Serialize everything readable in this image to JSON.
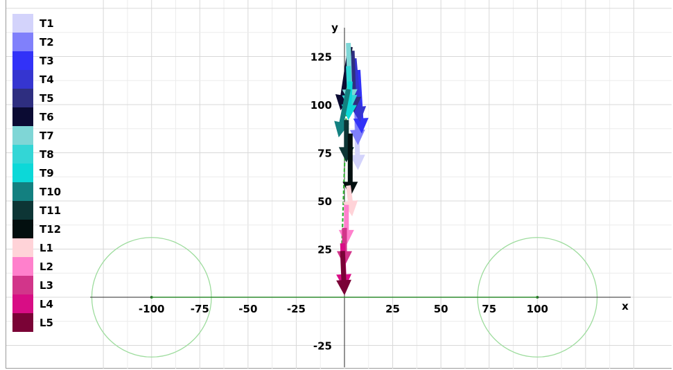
{
  "chart_data": {
    "type": "vector_field",
    "xlabel": "x",
    "ylabel": "y",
    "xlim": [
      -132,
      149
    ],
    "ylim": [
      -37,
      138
    ],
    "x_ticks": [
      -100,
      -75,
      -50,
      -25,
      25,
      50,
      75,
      100
    ],
    "y_ticks": [
      125,
      100,
      75,
      50,
      25,
      -25
    ],
    "grid": true,
    "legend_position": "left",
    "legend": [
      {
        "name": "T1",
        "color": "#d3d3fb"
      },
      {
        "name": "T2",
        "color": "#8080fb"
      },
      {
        "name": "T3",
        "color": "#3232f8"
      },
      {
        "name": "T4",
        "color": "#3535d0"
      },
      {
        "name": "T5",
        "color": "#2e2e80"
      },
      {
        "name": "T6",
        "color": "#0b0b33"
      },
      {
        "name": "T7",
        "color": "#7fd6d6"
      },
      {
        "name": "T8",
        "color": "#33d6d6"
      },
      {
        "name": "T9",
        "color": "#0cd8d8"
      },
      {
        "name": "T10",
        "color": "#138080"
      },
      {
        "name": "T11",
        "color": "#0d3535"
      },
      {
        "name": "T12",
        "color": "#030f0f"
      },
      {
        "name": "L1",
        "color": "#ffd3d8"
      },
      {
        "name": "L2",
        "color": "#ff80cc"
      },
      {
        "name": "L3",
        "color": "#d2358a"
      },
      {
        "name": "L4",
        "color": "#d80d85"
      },
      {
        "name": "L5",
        "color": "#7a0336"
      }
    ],
    "circles": [
      {
        "center": [
          -100,
          0
        ],
        "radius": 31
      },
      {
        "center": [
          100,
          0
        ],
        "radius": 31
      }
    ],
    "arrows": [
      {
        "series": "T1",
        "from": [
          6,
          100
        ],
        "to": [
          7,
          66
        ]
      },
      {
        "series": "T2",
        "from": [
          6,
          110
        ],
        "to": [
          7,
          79
        ]
      },
      {
        "series": "T3",
        "from": [
          7,
          118
        ],
        "to": [
          9,
          85
        ]
      },
      {
        "series": "T4",
        "from": [
          5,
          124
        ],
        "to": [
          8,
          91
        ]
      },
      {
        "series": "T5",
        "from": [
          4,
          128
        ],
        "to": [
          5,
          96
        ]
      },
      {
        "series": "T6",
        "from": [
          3,
          130
        ],
        "to": [
          -2,
          97
        ]
      },
      {
        "series": "T7",
        "from": [
          2,
          132
        ],
        "to": [
          3,
          100
        ]
      },
      {
        "series": "T8",
        "from": [
          2,
          120
        ],
        "to": [
          3,
          97
        ]
      },
      {
        "series": "T9",
        "from": [
          3,
          112
        ],
        "to": [
          2,
          92
        ]
      },
      {
        "series": "T10",
        "from": [
          2,
          108
        ],
        "to": [
          -3,
          83
        ]
      },
      {
        "series": "T11",
        "from": [
          1,
          92
        ],
        "to": [
          1,
          70
        ]
      },
      {
        "series": "T12",
        "from": [
          3,
          85
        ],
        "to": [
          3,
          52
        ]
      },
      {
        "series": "L1",
        "from": [
          2,
          58
        ],
        "to": [
          4,
          42
        ]
      },
      {
        "series": "L2",
        "from": [
          1,
          48
        ],
        "to": [
          1,
          27
        ]
      },
      {
        "series": "L3",
        "from": [
          0,
          36
        ],
        "to": [
          0,
          16
        ]
      },
      {
        "series": "L4",
        "from": [
          -1,
          28
        ],
        "to": [
          0,
          4
        ]
      },
      {
        "series": "L5",
        "from": [
          -1,
          24
        ],
        "to": [
          0,
          1
        ]
      }
    ]
  }
}
